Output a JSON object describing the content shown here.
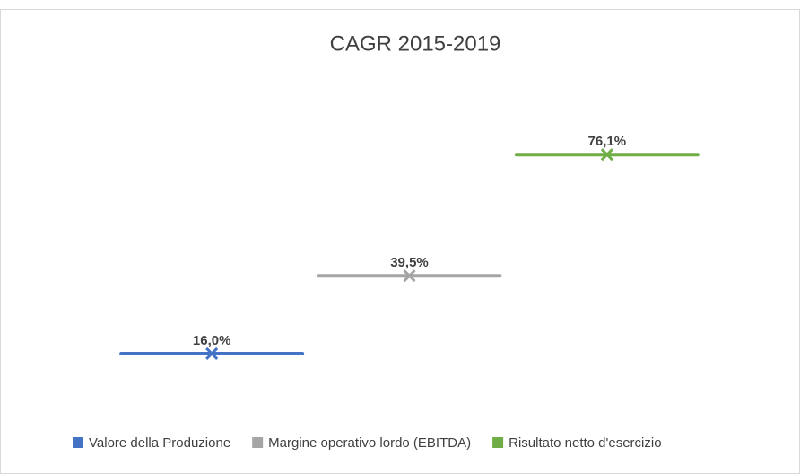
{
  "chart_data": {
    "type": "line",
    "title": "CAGR 2015-2019",
    "categories": [
      null,
      null,
      null
    ],
    "ylim": [
      0,
      100
    ],
    "series": [
      {
        "name": "Valore della Produzione",
        "color": "#4472c4",
        "values": [
          16.0,
          null,
          null
        ],
        "value_labels": [
          "16,0%",
          null,
          null
        ]
      },
      {
        "name": "Margine operativo lordo (EBITDA)",
        "color": "#a5a5a5",
        "values": [
          null,
          39.5,
          null
        ],
        "value_labels": [
          null,
          "39,5%",
          null
        ]
      },
      {
        "name": "Risultato netto d'esercizio",
        "color": "#70ad47",
        "values": [
          null,
          null,
          76.1
        ],
        "value_labels": [
          null,
          null,
          "76,1%"
        ]
      }
    ]
  }
}
